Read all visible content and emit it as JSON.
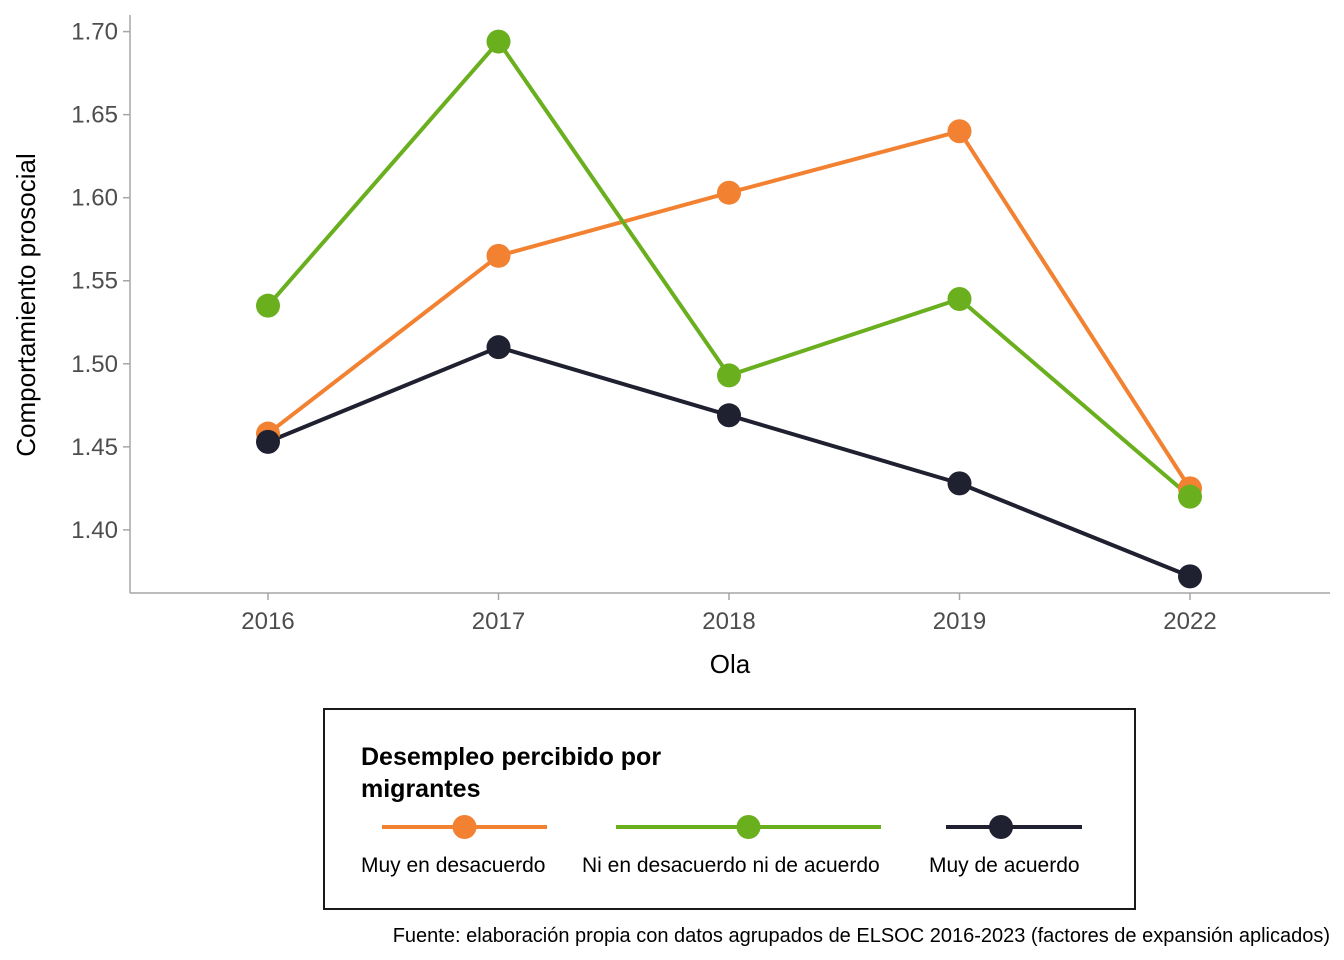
{
  "chart_data": {
    "type": "line",
    "categories": [
      "2016",
      "2017",
      "2018",
      "2019",
      "2022"
    ],
    "series": [
      {
        "name": "Muy en desacuerdo",
        "color": "#f28232",
        "values": [
          1.458,
          1.565,
          1.603,
          1.64,
          1.425
        ]
      },
      {
        "name": "Ni en desacuerdo ni de acuerdo",
        "color": "#6aaf1e",
        "values": [
          1.535,
          1.694,
          1.493,
          1.539,
          1.42
        ]
      },
      {
        "name": "Muy de acuerdo",
        "color": "#1f2030",
        "values": [
          1.453,
          1.51,
          1.469,
          1.428,
          1.372
        ]
      }
    ],
    "xlabel": "Ola",
    "ylabel": "Comportamiento prosocial",
    "ylim": [
      1.362,
      1.71
    ],
    "yticks": [
      1.4,
      1.45,
      1.5,
      1.55,
      1.6,
      1.65,
      1.7
    ],
    "ytick_labels": [
      "1.40",
      "1.45",
      "1.50",
      "1.55",
      "1.60",
      "1.65",
      "1.70"
    ],
    "grid": false,
    "legend": {
      "title_lines": [
        "Desempleo percibido por",
        "migrantes"
      ],
      "placement": "bottom"
    },
    "caption": "Fuente: elaboración propia con datos agrupados de ELSOC 2016-2023 (factores de expansión aplicados)"
  }
}
